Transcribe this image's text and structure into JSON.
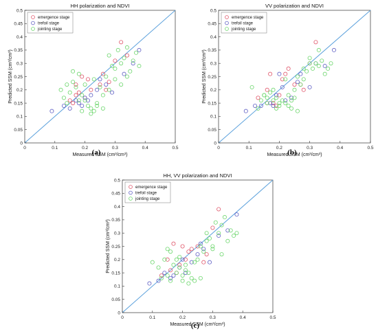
{
  "colors": {
    "emergence": "#e0566a",
    "trefoil": "#5f5fc4",
    "jointing": "#6cd66c",
    "fit_line": "#5aa0dc",
    "axis": "#333333"
  },
  "chart_data": [
    {
      "type": "scatter",
      "title": "HH polarization and NDVI",
      "caption": "(a)",
      "xlabel": "Measured SSM (cm³/cm³)",
      "ylabel": "Predicted SSM (cm³/cm³)",
      "xlim": [
        0,
        0.5
      ],
      "ylim": [
        0,
        0.5
      ],
      "xticks": [
        0,
        0.1,
        0.2,
        0.3,
        0.4,
        0.5
      ],
      "yticks": [
        0,
        0.05,
        0.1,
        0.15,
        0.2,
        0.25,
        0.3,
        0.35,
        0.4,
        0.45,
        0.5
      ],
      "reference_line": "1:1",
      "legend_position": "top-left",
      "series": [
        {
          "name": "emergence stage",
          "color_key": "emergence",
          "x": [
            0.16,
            0.17,
            0.17,
            0.18,
            0.2,
            0.21,
            0.22,
            0.25,
            0.26,
            0.27,
            0.28,
            0.3,
            0.32,
            0.34,
            0.15,
            0.19
          ],
          "y": [
            0.15,
            0.18,
            0.22,
            0.19,
            0.17,
            0.24,
            0.2,
            0.22,
            0.26,
            0.2,
            0.23,
            0.31,
            0.38,
            0.33,
            0.16,
            0.25
          ]
        },
        {
          "name": "trefoil stage",
          "color_key": "trefoil",
          "x": [
            0.09,
            0.13,
            0.15,
            0.17,
            0.19,
            0.2,
            0.22,
            0.24,
            0.27,
            0.29,
            0.33,
            0.36,
            0.38,
            0.25,
            0.18,
            0.21
          ],
          "y": [
            0.12,
            0.14,
            0.13,
            0.16,
            0.14,
            0.17,
            0.18,
            0.2,
            0.22,
            0.19,
            0.26,
            0.3,
            0.35,
            0.24,
            0.15,
            0.16
          ]
        },
        {
          "name": "jointing stage",
          "color_key": "jointing",
          "x": [
            0.12,
            0.13,
            0.14,
            0.15,
            0.16,
            0.17,
            0.18,
            0.19,
            0.2,
            0.21,
            0.22,
            0.23,
            0.24,
            0.25,
            0.26,
            0.27,
            0.28,
            0.29,
            0.3,
            0.31,
            0.32,
            0.33,
            0.34,
            0.35,
            0.36,
            0.37,
            0.38,
            0.16,
            0.18,
            0.2,
            0.22,
            0.24,
            0.26,
            0.28,
            0.3,
            0.32,
            0.34,
            0.14,
            0.19,
            0.23
          ],
          "y": [
            0.2,
            0.17,
            0.22,
            0.19,
            0.27,
            0.21,
            0.16,
            0.18,
            0.22,
            0.14,
            0.13,
            0.12,
            0.15,
            0.21,
            0.18,
            0.25,
            0.33,
            0.29,
            0.24,
            0.35,
            0.3,
            0.32,
            0.36,
            0.27,
            0.31,
            0.34,
            0.29,
            0.23,
            0.26,
            0.16,
            0.11,
            0.14,
            0.13,
            0.2,
            0.28,
            0.22,
            0.25,
            0.15,
            0.12,
            0.24
          ]
        }
      ]
    },
    {
      "type": "scatter",
      "title": "VV polarization and NDVI",
      "caption": "(b)",
      "xlabel": "Measured SSM (cm³/cm³)",
      "ylabel": "Predicted SSM (cm³/cm³)",
      "xlim": [
        0,
        0.5
      ],
      "ylim": [
        0,
        0.5
      ],
      "xticks": [
        0,
        0.1,
        0.2,
        0.3,
        0.4,
        0.5
      ],
      "yticks": [
        0,
        0.05,
        0.1,
        0.15,
        0.2,
        0.25,
        0.3,
        0.35,
        0.4,
        0.45,
        0.5
      ],
      "reference_line": "1:1",
      "legend_position": "top-left",
      "series": [
        {
          "name": "emergence stage",
          "color_key": "emergence",
          "x": [
            0.13,
            0.16,
            0.17,
            0.18,
            0.2,
            0.21,
            0.23,
            0.25,
            0.27,
            0.28,
            0.3,
            0.32,
            0.16,
            0.19,
            0.22
          ],
          "y": [
            0.17,
            0.2,
            0.26,
            0.15,
            0.18,
            0.24,
            0.28,
            0.22,
            0.22,
            0.2,
            0.3,
            0.38,
            0.15,
            0.14,
            0.26
          ]
        },
        {
          "name": "trefoil stage",
          "color_key": "trefoil",
          "x": [
            0.09,
            0.12,
            0.14,
            0.17,
            0.19,
            0.2,
            0.22,
            0.24,
            0.26,
            0.3,
            0.32,
            0.35,
            0.38,
            0.18,
            0.21,
            0.27
          ],
          "y": [
            0.12,
            0.14,
            0.14,
            0.15,
            0.18,
            0.26,
            0.16,
            0.17,
            0.23,
            0.21,
            0.3,
            0.29,
            0.35,
            0.14,
            0.21,
            0.26
          ]
        },
        {
          "name": "jointing stage",
          "color_key": "jointing",
          "x": [
            0.11,
            0.13,
            0.15,
            0.16,
            0.17,
            0.18,
            0.19,
            0.2,
            0.21,
            0.22,
            0.23,
            0.24,
            0.25,
            0.26,
            0.27,
            0.28,
            0.29,
            0.3,
            0.31,
            0.32,
            0.33,
            0.34,
            0.35,
            0.36,
            0.37,
            0.14,
            0.16,
            0.18,
            0.2,
            0.22,
            0.24,
            0.26,
            0.28,
            0.3,
            0.33,
            0.15,
            0.19,
            0.23,
            0.25
          ],
          "y": [
            0.21,
            0.13,
            0.18,
            0.15,
            0.19,
            0.16,
            0.17,
            0.14,
            0.16,
            0.15,
            0.18,
            0.13,
            0.2,
            0.25,
            0.22,
            0.24,
            0.27,
            0.32,
            0.28,
            0.3,
            0.35,
            0.31,
            0.26,
            0.28,
            0.3,
            0.16,
            0.17,
            0.2,
            0.15,
            0.24,
            0.16,
            0.12,
            0.28,
            0.3,
            0.29,
            0.18,
            0.13,
            0.14,
            0.17
          ]
        }
      ]
    },
    {
      "type": "scatter",
      "title": "HH, VV polarization and NDVI",
      "caption": "(c)",
      "xlabel": "Measured SSM (cm³/cm³)",
      "ylabel": "Predicted SSM (cm³/cm³)",
      "xlim": [
        0,
        0.5
      ],
      "ylim": [
        0,
        0.5
      ],
      "xticks": [
        0,
        0.1,
        0.2,
        0.3,
        0.4,
        0.5
      ],
      "yticks": [
        0,
        0.05,
        0.1,
        0.15,
        0.2,
        0.25,
        0.3,
        0.35,
        0.4,
        0.45,
        0.5
      ],
      "reference_line": "1:1",
      "legend_position": "top-left",
      "series": [
        {
          "name": "emergence stage",
          "color_key": "emergence",
          "x": [
            0.13,
            0.15,
            0.16,
            0.17,
            0.19,
            0.2,
            0.21,
            0.22,
            0.25,
            0.27,
            0.28,
            0.3,
            0.32,
            0.18,
            0.23
          ],
          "y": [
            0.14,
            0.2,
            0.16,
            0.26,
            0.18,
            0.25,
            0.2,
            0.23,
            0.25,
            0.19,
            0.22,
            0.32,
            0.39,
            0.15,
            0.24
          ]
        },
        {
          "name": "trefoil stage",
          "color_key": "trefoil",
          "x": [
            0.09,
            0.12,
            0.14,
            0.17,
            0.19,
            0.21,
            0.23,
            0.25,
            0.27,
            0.29,
            0.32,
            0.35,
            0.38,
            0.16,
            0.2,
            0.26
          ],
          "y": [
            0.11,
            0.12,
            0.15,
            0.14,
            0.17,
            0.15,
            0.19,
            0.22,
            0.24,
            0.19,
            0.29,
            0.31,
            0.37,
            0.13,
            0.2,
            0.26
          ]
        },
        {
          "name": "jointing stage",
          "color_key": "jointing",
          "x": [
            0.1,
            0.12,
            0.14,
            0.15,
            0.16,
            0.17,
            0.18,
            0.19,
            0.2,
            0.21,
            0.22,
            0.23,
            0.24,
            0.25,
            0.26,
            0.27,
            0.28,
            0.29,
            0.3,
            0.31,
            0.32,
            0.33,
            0.34,
            0.35,
            0.36,
            0.37,
            0.38,
            0.13,
            0.15,
            0.18,
            0.2,
            0.22,
            0.24,
            0.26,
            0.28,
            0.3,
            0.33,
            0.16,
            0.19,
            0.21
          ],
          "y": [
            0.19,
            0.17,
            0.2,
            0.14,
            0.23,
            0.18,
            0.15,
            0.17,
            0.12,
            0.16,
            0.11,
            0.13,
            0.12,
            0.2,
            0.25,
            0.23,
            0.3,
            0.28,
            0.24,
            0.34,
            0.3,
            0.33,
            0.36,
            0.27,
            0.31,
            0.29,
            0.3,
            0.13,
            0.24,
            0.2,
            0.14,
            0.15,
            0.19,
            0.13,
            0.27,
            0.25,
            0.22,
            0.12,
            0.21,
            0.18
          ]
        }
      ]
    }
  ]
}
